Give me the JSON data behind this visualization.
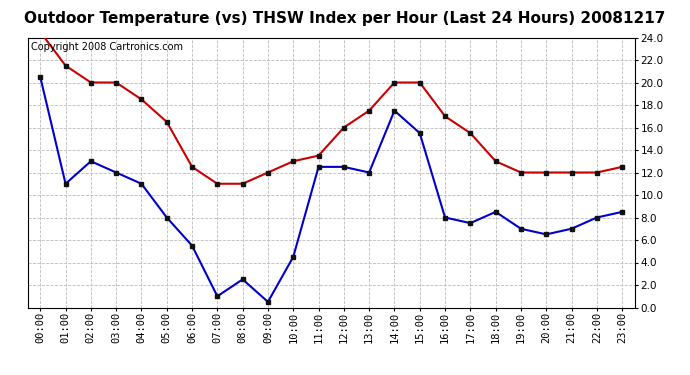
{
  "title": "Outdoor Temperature (vs) THSW Index per Hour (Last 24 Hours) 20081217",
  "copyright": "Copyright 2008 Cartronics.com",
  "x_labels": [
    "00:00",
    "01:00",
    "02:00",
    "03:00",
    "04:00",
    "05:00",
    "06:00",
    "07:00",
    "08:00",
    "09:00",
    "10:00",
    "11:00",
    "12:00",
    "13:00",
    "14:00",
    "15:00",
    "16:00",
    "17:00",
    "18:00",
    "19:00",
    "20:00",
    "21:00",
    "22:00",
    "23:00"
  ],
  "red_data": [
    24.5,
    21.5,
    20.0,
    20.0,
    18.5,
    16.5,
    12.5,
    11.0,
    11.0,
    12.0,
    13.0,
    13.5,
    16.0,
    17.5,
    20.0,
    20.0,
    17.0,
    15.5,
    13.0,
    12.0,
    12.0,
    12.0,
    12.0,
    12.5
  ],
  "blue_data": [
    20.5,
    11.0,
    13.0,
    12.0,
    11.0,
    8.0,
    5.5,
    1.0,
    2.5,
    0.5,
    4.5,
    12.5,
    12.5,
    12.0,
    17.5,
    15.5,
    8.0,
    7.5,
    8.5,
    7.0,
    6.5,
    7.0,
    8.0,
    8.5
  ],
  "red_color": "#cc0000",
  "blue_color": "#0000cc",
  "bg_color": "#ffffff",
  "grid_color": "#bbbbbb",
  "ylim": [
    0.0,
    24.0
  ],
  "yticks": [
    0.0,
    2.0,
    4.0,
    6.0,
    8.0,
    10.0,
    12.0,
    14.0,
    16.0,
    18.0,
    20.0,
    22.0,
    24.0
  ],
  "title_fontsize": 11,
  "copyright_fontsize": 7,
  "tick_fontsize": 7.5,
  "marker": "s",
  "marker_size": 3.0,
  "marker_color": "#111111",
  "linewidth": 1.5
}
